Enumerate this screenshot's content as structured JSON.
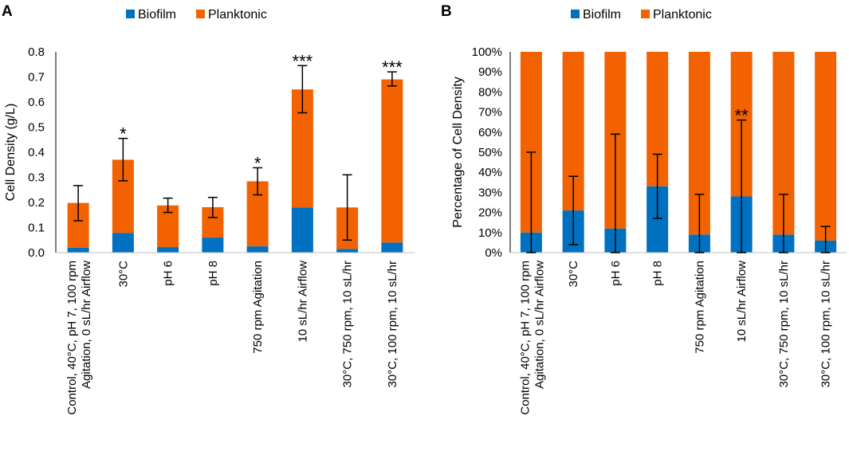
{
  "colors": {
    "biofilm": "#0070c0",
    "planktonic": "#f26200",
    "axis": "#000000",
    "errorbar": "#000000"
  },
  "chart_data": [
    {
      "panel": "A",
      "type": "bar",
      "stacked": true,
      "legend": [
        "Biofilm",
        "Planktonic"
      ],
      "legend_position": "top",
      "xlabel": "",
      "ylabel": "Cell Density (g/L)",
      "ylim": [
        0,
        0.8
      ],
      "yticks": [
        "0.0",
        "0.1",
        "0.2",
        "0.3",
        "0.4",
        "0.5",
        "0.6",
        "0.7",
        "0.8"
      ],
      "grid": false,
      "categories": [
        [
          "Control, 40°C, pH 7, 100 rpm",
          "Agitation, 0 sL/hr Airflow"
        ],
        [
          "30°C"
        ],
        [
          "pH 6"
        ],
        [
          "pH 8"
        ],
        [
          "750 rpm Agitation"
        ],
        [
          "10 sL/hr Airflow"
        ],
        [
          "30°C, 750 rpm, 10 sL/hr"
        ],
        [
          "30°C, 100 rpm, 10 sL/hr"
        ]
      ],
      "series": [
        {
          "name": "Biofilm",
          "values": [
            0.02,
            0.078,
            0.022,
            0.06,
            0.025,
            0.18,
            0.015,
            0.04
          ]
        },
        {
          "name": "Planktonic",
          "values": [
            0.178,
            0.292,
            0.166,
            0.121,
            0.259,
            0.47,
            0.165,
            0.65
          ]
        }
      ],
      "error_bars": {
        "lower": [
          0.127,
          0.286,
          0.16,
          0.14,
          0.23,
          0.557,
          0.05,
          0.664
        ],
        "upper": [
          0.267,
          0.455,
          0.217,
          0.22,
          0.338,
          0.745,
          0.31,
          0.72
        ]
      },
      "annotations": [
        "",
        "*",
        "",
        "",
        "*",
        "***",
        "",
        "***"
      ]
    },
    {
      "panel": "B",
      "type": "bar",
      "stacked": true,
      "legend": [
        "Biofilm",
        "Planktonic"
      ],
      "legend_position": "top",
      "xlabel": "",
      "ylabel": "Percentage of Cell Density",
      "ylim": [
        0,
        100
      ],
      "yticks": [
        "0%",
        "10%",
        "20%",
        "30%",
        "40%",
        "50%",
        "60%",
        "70%",
        "80%",
        "90%",
        "100%"
      ],
      "grid": false,
      "categories": [
        [
          "Control, 40°C, pH 7, 100 rpm",
          "Agitation, 0 sL/hr Airflow"
        ],
        [
          "30°C"
        ],
        [
          "pH 6"
        ],
        [
          "pH 8"
        ],
        [
          "750 rpm Agitation"
        ],
        [
          "10 sL/hr Airflow"
        ],
        [
          "30°C, 750 rpm, 10 sL/hr"
        ],
        [
          "30°C, 100 rpm, 10 sL/hr"
        ]
      ],
      "series": [
        {
          "name": "Biofilm",
          "values": [
            10,
            21,
            12,
            33,
            9,
            28,
            9,
            6
          ]
        },
        {
          "name": "Planktonic",
          "values": [
            90,
            79,
            88,
            67,
            91,
            72,
            91,
            94
          ]
        }
      ],
      "error_bars": {
        "lower": [
          0,
          4,
          0,
          17,
          0,
          0,
          0,
          0
        ],
        "upper": [
          50,
          38,
          59,
          49,
          29,
          66,
          29,
          13
        ]
      },
      "annotations": [
        "",
        "",
        "",
        "",
        "",
        "**",
        "",
        ""
      ]
    }
  ]
}
